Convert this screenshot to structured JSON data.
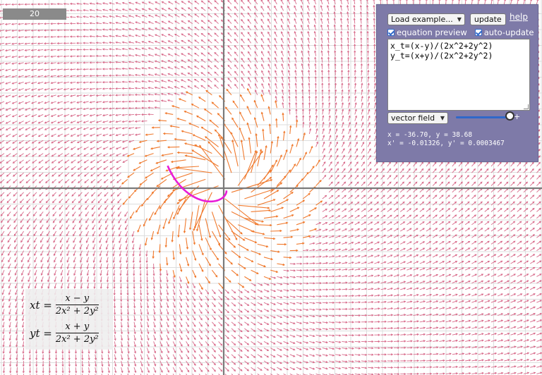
{
  "scale_label": "20",
  "controls": {
    "example_select": "Load example...",
    "update_label": "update",
    "help_label": "help",
    "equation_preview_label": "equation preview",
    "auto_update_label": "auto-update",
    "equations": [
      "x_t=(x-y)/(2x^2+2y^2)",
      "y_t=(x+y)/(2x^2+2y^2)"
    ],
    "mode_select": "vector field",
    "plus_label": "+",
    "slider_value": 0.9
  },
  "readout": {
    "line1": "x = -36.70, y = 38.68",
    "line2": "x' = -0.01326, y' = 0.0003467"
  },
  "equation_preview": {
    "x_lhs": "xt =",
    "x_num": "x − y",
    "x_den": "2x² + 2y²",
    "y_lhs": "yt =",
    "y_num": "x + y",
    "y_den": "2x² + 2y²"
  },
  "colors": {
    "axes": "#7a7a7a",
    "grid": "#dddddd",
    "field_arrow": "#d86a8a",
    "near_arrow": "#f07a2e",
    "trajectory": "#e81cd8",
    "panel": "#7e7aa8"
  }
}
